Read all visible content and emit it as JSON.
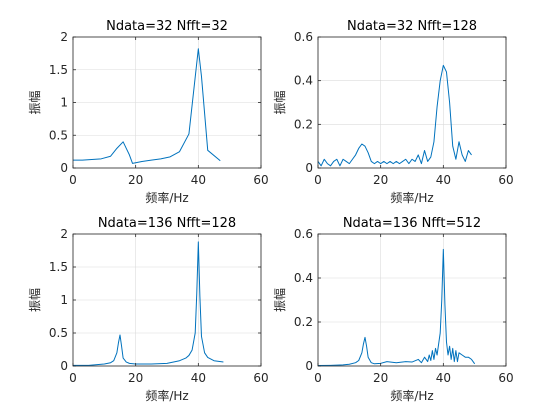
{
  "colors": {
    "line": "#0072BD",
    "axis": "#262626",
    "grid": "#dcdcdc",
    "background": "#ffffff"
  },
  "chart_data": [
    {
      "type": "line",
      "title": "Ndata=32 Nfft=32",
      "xlabel": "频率/Hz",
      "ylabel": "振幅",
      "xlim": [
        0,
        60
      ],
      "ylim": [
        0,
        2
      ],
      "xticks": [
        "0",
        "20",
        "40",
        "60"
      ],
      "yticks": [
        "0",
        "0.5",
        "1",
        "1.5",
        "2"
      ],
      "grid": true,
      "series": [
        {
          "x": [
            0,
            3,
            6,
            9,
            12,
            14,
            16,
            18,
            19,
            22,
            25,
            28,
            31,
            34,
            37,
            40,
            41,
            43,
            47
          ],
          "y": [
            0.12,
            0.12,
            0.13,
            0.14,
            0.18,
            0.3,
            0.4,
            0.2,
            0.07,
            0.1,
            0.12,
            0.14,
            0.17,
            0.25,
            0.52,
            1.82,
            1.4,
            0.27,
            0.11
          ]
        }
      ]
    },
    {
      "type": "line",
      "title": "Ndata=32 Nfft=128",
      "xlabel": "频率/Hz",
      "ylabel": "振幅",
      "xlim": [
        0,
        60
      ],
      "ylim": [
        0,
        0.6
      ],
      "xticks": [
        "0",
        "20",
        "40",
        "60"
      ],
      "yticks": [
        "0",
        "0.2",
        "0.4",
        "0.6"
      ],
      "grid": true,
      "series": [
        {
          "x": [
            0,
            1,
            2,
            3,
            4,
            5,
            6,
            7,
            8,
            9,
            10,
            11,
            12,
            13,
            14,
            15,
            16,
            17,
            18,
            19,
            20,
            21,
            22,
            23,
            24,
            25,
            26,
            27,
            28,
            29,
            30,
            31,
            32,
            33,
            34,
            35,
            36,
            37,
            38,
            39,
            40,
            41,
            42,
            43,
            44,
            45,
            46,
            47,
            48,
            49
          ],
          "y": [
            0.03,
            0.01,
            0.04,
            0.02,
            0.01,
            0.03,
            0.04,
            0.01,
            0.04,
            0.03,
            0.02,
            0.04,
            0.06,
            0.09,
            0.11,
            0.1,
            0.07,
            0.03,
            0.02,
            0.03,
            0.02,
            0.03,
            0.02,
            0.03,
            0.02,
            0.03,
            0.02,
            0.03,
            0.04,
            0.02,
            0.04,
            0.03,
            0.06,
            0.02,
            0.08,
            0.03,
            0.05,
            0.12,
            0.28,
            0.4,
            0.47,
            0.44,
            0.3,
            0.1,
            0.04,
            0.12,
            0.06,
            0.03,
            0.08,
            0.06
          ]
        }
      ]
    },
    {
      "type": "line",
      "title": "Ndata=136 Nfft=128",
      "xlabel": "频率/Hz",
      "ylabel": "振幅",
      "xlim": [
        0,
        60
      ],
      "ylim": [
        0,
        2
      ],
      "xticks": [
        "0",
        "20",
        "40",
        "60"
      ],
      "yticks": [
        "0",
        "0.5",
        "1",
        "1.5",
        "2"
      ],
      "grid": true,
      "series": [
        {
          "x": [
            0,
            5,
            10,
            12,
            13,
            14,
            14.5,
            15,
            15.5,
            16,
            17,
            18,
            20,
            25,
            30,
            34,
            36,
            37,
            38,
            39,
            39.5,
            40,
            40.5,
            41,
            42,
            43,
            45,
            48
          ],
          "y": [
            0.01,
            0.01,
            0.03,
            0.05,
            0.08,
            0.2,
            0.35,
            0.47,
            0.3,
            0.12,
            0.06,
            0.04,
            0.03,
            0.03,
            0.04,
            0.08,
            0.12,
            0.16,
            0.24,
            0.5,
            1.1,
            1.88,
            1.05,
            0.45,
            0.2,
            0.13,
            0.08,
            0.06
          ]
        }
      ]
    },
    {
      "type": "line",
      "title": "Ndata=136 Nfft=512",
      "xlabel": "频率/Hz",
      "ylabel": "振幅",
      "xlim": [
        0,
        60
      ],
      "ylim": [
        0,
        0.6
      ],
      "xticks": [
        "0",
        "20",
        "40",
        "60"
      ],
      "yticks": [
        "0",
        "0.2",
        "0.4",
        "0.6"
      ],
      "grid": true,
      "series": [
        {
          "x": [
            0,
            4,
            8,
            10,
            12,
            13,
            14,
            14.5,
            15,
            15.5,
            16,
            17,
            18,
            20,
            22,
            25,
            28,
            30,
            32,
            33,
            34,
            35,
            35.5,
            36,
            36.5,
            37,
            37.5,
            38,
            38.5,
            39,
            39.5,
            40,
            40.5,
            41,
            41.5,
            42,
            42.5,
            43,
            43.5,
            44,
            44.5,
            45,
            46,
            47,
            48,
            49,
            50
          ],
          "y": [
            0.002,
            0.003,
            0.005,
            0.008,
            0.015,
            0.025,
            0.06,
            0.1,
            0.13,
            0.09,
            0.04,
            0.015,
            0.01,
            0.012,
            0.02,
            0.015,
            0.02,
            0.018,
            0.03,
            0.015,
            0.04,
            0.02,
            0.05,
            0.025,
            0.07,
            0.03,
            0.08,
            0.05,
            0.1,
            0.15,
            0.3,
            0.53,
            0.28,
            0.11,
            0.05,
            0.09,
            0.03,
            0.08,
            0.02,
            0.07,
            0.02,
            0.06,
            0.05,
            0.04,
            0.04,
            0.03,
            0.01
          ]
        }
      ]
    }
  ]
}
